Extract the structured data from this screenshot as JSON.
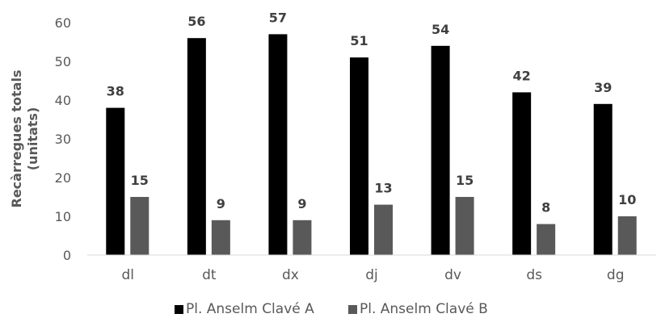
{
  "chart_data": {
    "type": "bar",
    "categories": [
      "dl",
      "dt",
      "dx",
      "dj",
      "dv",
      "ds",
      "dg"
    ],
    "series": [
      {
        "name": "Pl. Anselm Clavé A",
        "color": "#000000",
        "values": [
          38,
          56,
          57,
          51,
          54,
          42,
          39
        ]
      },
      {
        "name": "Pl. Anselm Clavé B",
        "color": "#595959",
        "values": [
          15,
          9,
          9,
          13,
          15,
          8,
          10
        ]
      }
    ],
    "title": "",
    "xlabel": "",
    "ylabel": [
      "Recàrregues totals",
      "(unitats)"
    ],
    "ylim": [
      0,
      60
    ],
    "yticks": [
      0,
      10,
      20,
      30,
      40,
      50,
      60
    ],
    "grid": false,
    "legend_position": "bottom",
    "data_labels": true
  }
}
